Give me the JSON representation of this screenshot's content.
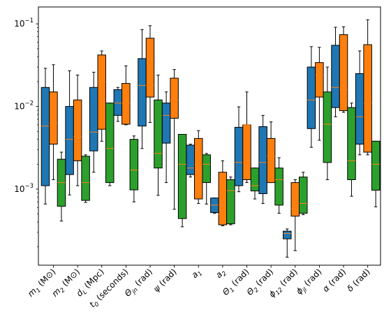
{
  "chart_data": {
    "type": "box",
    "title": "",
    "xlabel": "",
    "ylabel": "",
    "yscale": "log",
    "ylim": [
      0.00012,
      0.16
    ],
    "y_ticks": [
      {
        "value": 0.001,
        "base": "10",
        "exp": "−3"
      },
      {
        "value": 0.01,
        "base": "10",
        "exp": "−2"
      },
      {
        "value": 0.1,
        "base": "10",
        "exp": "−1"
      }
    ],
    "categories": [
      "m1 (M⊙)",
      "m2 (M⊙)",
      "dL (Mpc)",
      "t0 (seconds)",
      "Θjn (rad)",
      "ψ (rad)",
      "a1",
      "a2",
      "Θ1 (rad)",
      "Θ2 (rad)",
      "ϕ12 (rad)",
      "ϕjl (rad)",
      "α (rad)",
      "δ (rad)"
    ],
    "category_parts": [
      {
        "main": "m",
        "sub": "1",
        "unit": " (M⊙)"
      },
      {
        "main": "m",
        "sub": "2",
        "unit": " (M⊙)"
      },
      {
        "main": "d",
        "sub": "L",
        "unit": " (Mpc)"
      },
      {
        "main": "t",
        "sub": "0",
        "unit": " (seconds)"
      },
      {
        "main": "Θ",
        "sub": "jn",
        "unit": " (rad)"
      },
      {
        "main": "ψ",
        "sub": "",
        "unit": " (rad)"
      },
      {
        "main": "a",
        "sub": "1",
        "unit": ""
      },
      {
        "main": "a",
        "sub": "2",
        "unit": ""
      },
      {
        "main": "Θ",
        "sub": "1",
        "unit": " (rad)"
      },
      {
        "main": "Θ",
        "sub": "2",
        "unit": " (rad)"
      },
      {
        "main": "ϕ",
        "sub": "12",
        "unit": " (rad)"
      },
      {
        "main": "ϕ",
        "sub": "jl",
        "unit": " (rad)"
      },
      {
        "main": "α",
        "sub": "",
        "unit": " (rad)"
      },
      {
        "main": "δ",
        "sub": "",
        "unit": " (rad)"
      }
    ],
    "colors": {
      "s1": "#1f77b4",
      "s2": "#ff7f0e",
      "s3": "#2ca02c",
      "median": "#ff7f0e",
      "axis": "#000000"
    },
    "series": [
      {
        "color_key": "s1",
        "boxes": [
          {
            "whislo": 0.00066,
            "q1": 0.0011,
            "med": 0.0058,
            "q3": 0.017,
            "whishi": 0.029
          },
          {
            "whislo": 0.00085,
            "q1": 0.0015,
            "med": 0.004,
            "q3": 0.01,
            "whishi": 0.027
          },
          {
            "whislo": 0.0016,
            "q1": 0.0029,
            "med": 0.0049,
            "q3": 0.017,
            "whishi": 0.026
          },
          {
            "whislo": 0.0066,
            "q1": 0.0078,
            "med": 0.011,
            "q3": 0.016,
            "whishi": 0.017
          },
          {
            "whislo": 0.0031,
            "q1": 0.0058,
            "med": 0.018,
            "q3": 0.038,
            "whishi": 0.085
          },
          {
            "whislo": 0.0012,
            "q1": 0.0036,
            "med": 0.0078,
            "q3": 0.011,
            "whishi": 0.015
          },
          {
            "whislo": 0.0014,
            "q1": 0.0015,
            "med": 0.0018,
            "q3": 0.0034,
            "whishi": 0.0035
          },
          {
            "whislo": 0.00051,
            "q1": 0.00052,
            "med": 0.00064,
            "q3": 0.00078,
            "whishi": 0.00078
          },
          {
            "whislo": 0.00093,
            "q1": 0.0011,
            "med": 0.0021,
            "q3": 0.0056,
            "whishi": 0.0099
          },
          {
            "whislo": 0.00067,
            "q1": 0.00088,
            "med": 0.0021,
            "q3": 0.0057,
            "whishi": 0.0078
          },
          {
            "whislo": 0.00015,
            "q1": 0.00025,
            "med": 0.00029,
            "q3": 0.00031,
            "whishi": 0.00033
          },
          {
            "whislo": 0.0032,
            "q1": 0.0054,
            "med": 0.012,
            "q3": 0.03,
            "whishi": 0.053
          },
          {
            "whislo": 0.0075,
            "q1": 0.0097,
            "med": 0.017,
            "q3": 0.055,
            "whishi": 0.091
          },
          {
            "whislo": 0.0026,
            "q1": 0.0035,
            "med": 0.0075,
            "q3": 0.025,
            "whishi": 0.047
          }
        ]
      },
      {
        "color_key": "s2",
        "boxes": [
          {
            "whislo": 0.0013,
            "q1": 0.0035,
            "med": 0.0063,
            "q3": 0.015,
            "whishi": 0.032
          },
          {
            "whislo": 0.0011,
            "q1": 0.0022,
            "med": 0.0043,
            "q3": 0.012,
            "whishi": 0.024
          },
          {
            "whislo": 0.0038,
            "q1": 0.0053,
            "med": 0.02,
            "q3": 0.042,
            "whishi": 0.047
          },
          {
            "whislo": 0.006,
            "q1": 0.0061,
            "med": 0.011,
            "q3": 0.019,
            "whishi": 0.031
          },
          {
            "whislo": 0.0064,
            "q1": 0.013,
            "med": 0.018,
            "q3": 0.067,
            "whishi": 0.095
          },
          {
            "whislo": 0.00057,
            "q1": 0.0072,
            "med": 0.012,
            "q3": 0.022,
            "whishi": 0.028
          },
          {
            "whislo": 0.00067,
            "q1": 0.00076,
            "med": 0.002,
            "q3": 0.0041,
            "whishi": 0.0051
          },
          {
            "whislo": 0.00036,
            "q1": 0.00037,
            "med": 0.00049,
            "q3": 0.0016,
            "whishi": 0.0022
          },
          {
            "whislo": 0.0012,
            "q1": 0.0013,
            "med": 0.006,
            "q3": 0.006,
            "whishi": 0.015
          },
          {
            "whislo": 0.0012,
            "q1": 0.0012,
            "med": 0.0025,
            "q3": 0.0041,
            "whishi": 0.0065
          },
          {
            "whislo": 0.00018,
            "q1": 0.00047,
            "med": 0.00058,
            "q3": 0.0012,
            "whishi": 0.0013
          },
          {
            "whislo": 0.0039,
            "q1": 0.013,
            "med": 0.024,
            "q3": 0.034,
            "whishi": 0.052
          },
          {
            "whislo": 0.0085,
            "q1": 0.0089,
            "med": 0.016,
            "q3": 0.074,
            "whishi": 0.092
          },
          {
            "whislo": 0.0026,
            "q1": 0.0028,
            "med": 0.011,
            "q3": 0.056,
            "whishi": 0.112
          }
        ]
      },
      {
        "color_key": "s3",
        "boxes": [
          {
            "whislo": 0.00041,
            "q1": 0.00062,
            "med": 0.0012,
            "q3": 0.0023,
            "whishi": 0.0028
          },
          {
            "whislo": 0.00069,
            "q1": 0.00073,
            "med": 0.0012,
            "q3": 0.0025,
            "whishi": 0.0026
          },
          {
            "whislo": 0.0011,
            "q1": 0.0012,
            "med": 0.0031,
            "q3": 0.011,
            "whishi": 0.011
          },
          {
            "whislo": 0.0007,
            "q1": 0.00098,
            "med": 0.0017,
            "q3": 0.004,
            "whishi": 0.0044
          },
          {
            "whislo": 0.00084,
            "q1": 0.0018,
            "med": 0.0027,
            "q3": 0.012,
            "whishi": 0.024
          },
          {
            "whislo": 0.00035,
            "q1": 0.00044,
            "med": 0.002,
            "q3": 0.0046,
            "whishi": 0.0046
          },
          {
            "whislo": 0.00066,
            "q1": 0.0012,
            "med": 0.002,
            "q3": 0.0026,
            "whishi": 0.0027
          },
          {
            "whislo": 0.00037,
            "q1": 0.00038,
            "med": 0.00096,
            "q3": 0.0013,
            "whishi": 0.0014
          },
          {
            "whislo": 0.00076,
            "q1": 0.00095,
            "med": 0.0011,
            "q3": 0.0018,
            "whishi": 0.0018
          },
          {
            "whislo": 0.00051,
            "q1": 0.00064,
            "med": 0.0013,
            "q3": 0.0018,
            "whishi": 0.0024
          },
          {
            "whislo": 0.00049,
            "q1": 0.00051,
            "med": 0.00067,
            "q3": 0.0014,
            "whishi": 0.0016
          },
          {
            "whislo": 0.0013,
            "q1": 0.0021,
            "med": 0.0061,
            "q3": 0.015,
            "whishi": 0.03
          },
          {
            "whislo": 0.00082,
            "q1": 0.0013,
            "med": 0.0022,
            "q3": 0.0097,
            "whishi": 0.011
          },
          {
            "whislo": 0.00061,
            "q1": 0.00097,
            "med": 0.002,
            "q3": 0.0038,
            "whishi": 0.0038
          }
        ]
      }
    ],
    "grid": false,
    "legend": "none"
  }
}
